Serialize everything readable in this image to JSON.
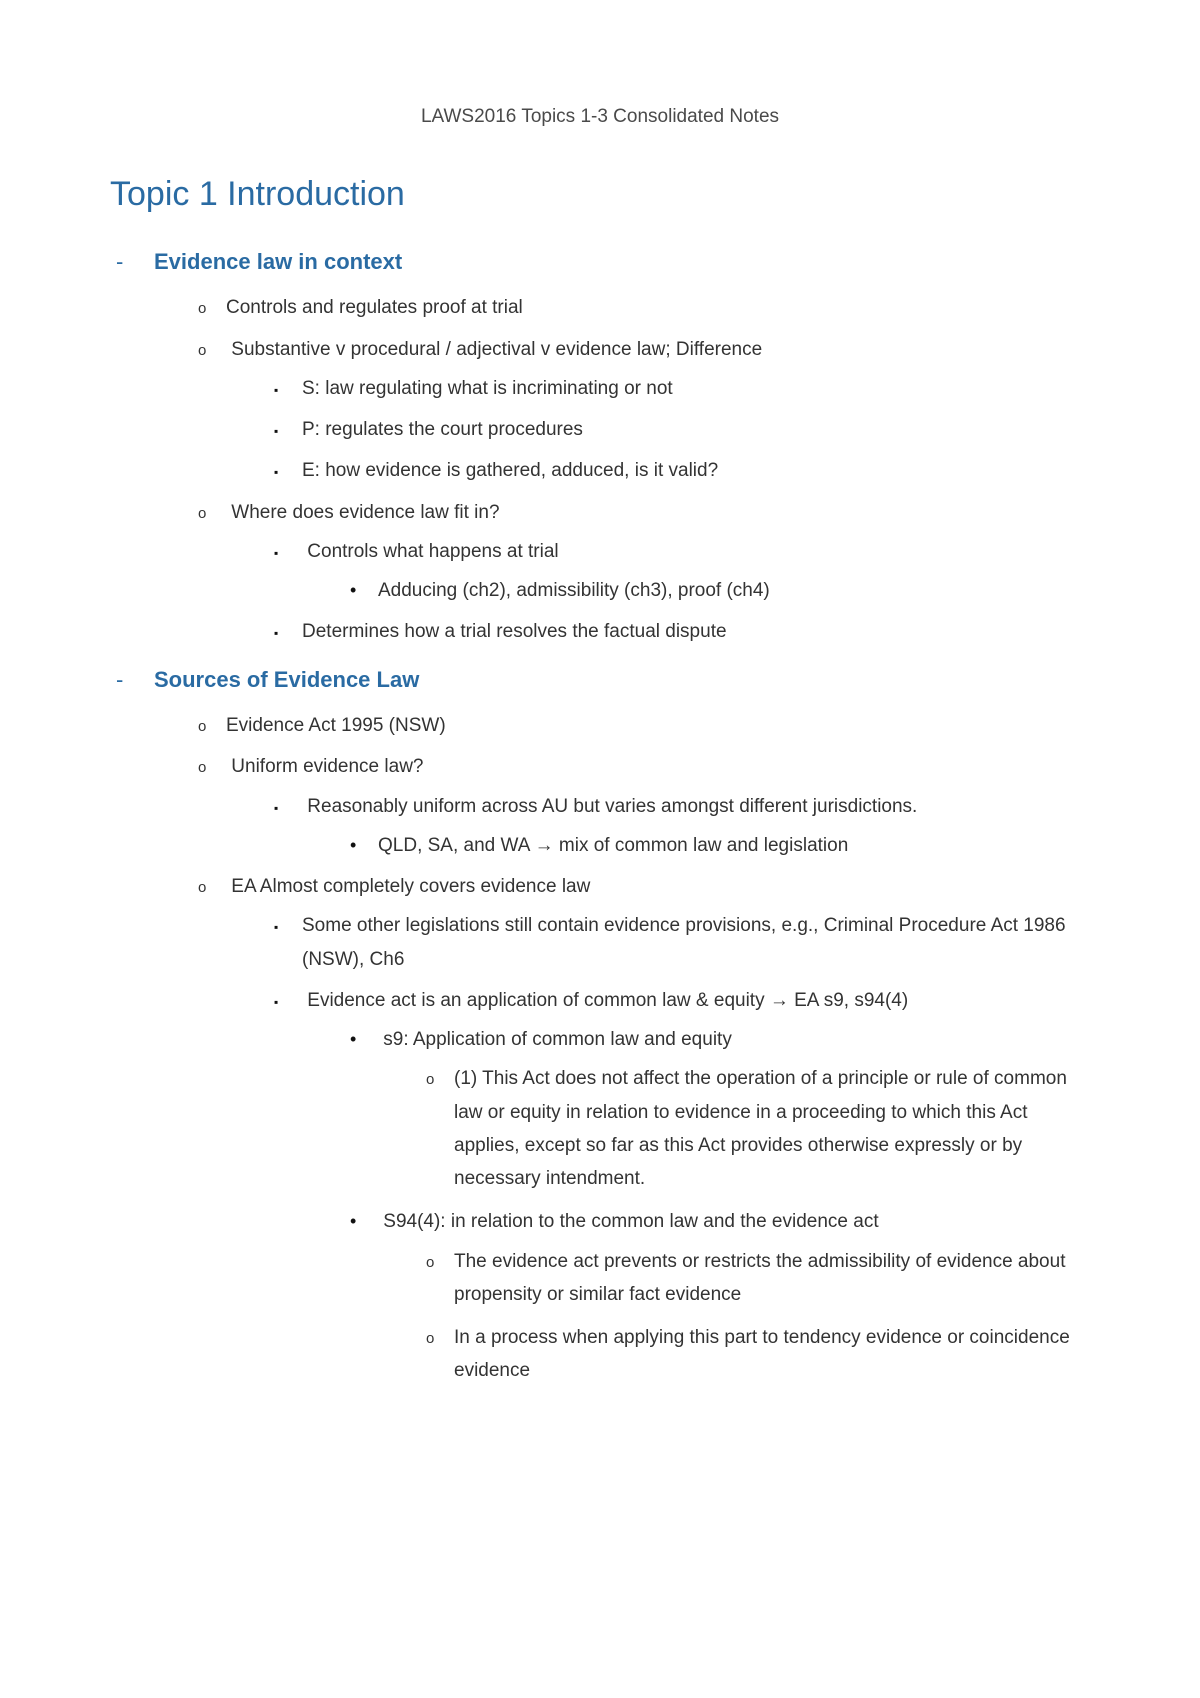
{
  "colors": {
    "heading_blue": "#2a6ba3",
    "body_text": "#333333",
    "background": "#ffffff"
  },
  "typography": {
    "body_fontsize": 19,
    "h1_fontsize": 34,
    "h2_fontsize": 22,
    "font_family": "Arial"
  },
  "header": "LAWS2016 Topics 1-3 Consolidated Notes",
  "title": "Topic 1 Introduction",
  "section1": {
    "heading": "Evidence law in context",
    "i1": "Controls and regulates proof at trial",
    "i2": "Substantive v procedural / adjectival v evidence law; Difference",
    "i2a": "S: law regulating what is incriminating or not",
    "i2b": "P: regulates the court procedures",
    "i2c": "E: how evidence is gathered, adduced, is it valid?",
    "i3": "Where does evidence law fit in?",
    "i3a": "Controls what happens at trial",
    "i3a1": "Adducing (ch2), admissibility (ch3), proof (ch4)",
    "i3b": "Determines how a trial resolves the factual dispute"
  },
  "section2": {
    "heading": "Sources of Evidence Law",
    "i1": "Evidence Act 1995 (NSW)",
    "i2": "Uniform evidence law?",
    "i2a": "Reasonably uniform across AU but varies amongst different jurisdictions.",
    "i2a1": "QLD, SA, and WA → mix of common law and legislation",
    "i3": "EA Almost completely covers evidence law",
    "i3a": "Some other legislations still contain evidence provisions, e.g., Criminal Procedure Act 1986 (NSW), Ch6",
    "i3b": "Evidence act is an application of common law & equity → EA s9, s94(4)",
    "i3b1": "s9: Application of common law and equity",
    "i3b1a": "(1) This Act does not affect the operation of a principle or rule of common law or equity in relation to evidence in a proceeding to which this Act applies, except so far as this Act provides otherwise expressly or by necessary intendment.",
    "i3b2": "S94(4): in relation to the common law and the evidence act",
    "i3b2a": "The evidence act prevents or restricts the admissibility of evidence about propensity or similar fact evidence",
    "i3b2b": "In a process when applying this part to tendency evidence or coincidence evidence"
  }
}
